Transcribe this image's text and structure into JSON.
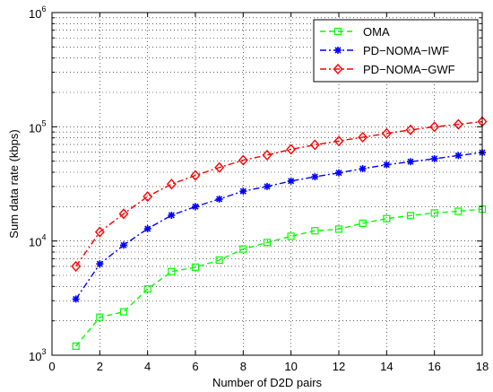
{
  "chart_data": {
    "type": "line",
    "xlabel": "Number of D2D pairs",
    "ylabel": "Sum data rate (kbps)",
    "xlim": [
      0,
      18
    ],
    "ylim": [
      1000,
      1000000
    ],
    "yscale": "log",
    "xticks": [
      0,
      2,
      4,
      6,
      8,
      10,
      12,
      14,
      16,
      18
    ],
    "xtick_labels": [
      "0",
      "2",
      "4",
      "6",
      "8",
      "10",
      "12",
      "14",
      "16",
      "18"
    ],
    "yticks": [
      1000,
      10000,
      100000,
      1000000
    ],
    "ytick_labels": [
      {
        "base": "10",
        "exp": "3"
      },
      {
        "base": "10",
        "exp": "4"
      },
      {
        "base": "10",
        "exp": "5"
      },
      {
        "base": "10",
        "exp": "6"
      }
    ],
    "grid": true,
    "legend_position": "top-right",
    "x": [
      1,
      2,
      3,
      4,
      5,
      6,
      7,
      8,
      9,
      10,
      11,
      12,
      13,
      14,
      15,
      16,
      17,
      18
    ],
    "series": [
      {
        "name": "OMA",
        "color": "#00ff00",
        "marker": "square",
        "dash": "dashed",
        "values": [
          1200,
          2150,
          2400,
          3800,
          5400,
          5900,
          6800,
          8500,
          9700,
          11000,
          12300,
          12700,
          14300,
          15700,
          16700,
          17600,
          18200,
          19000
        ]
      },
      {
        "name": "PD−NOMA−IWF",
        "color": "#0000ff",
        "marker": "star",
        "dash": "dashdot",
        "values": [
          3100,
          6300,
          9200,
          12800,
          16800,
          20000,
          23300,
          27300,
          30000,
          33500,
          36500,
          39500,
          43000,
          46500,
          49500,
          52500,
          56000,
          59500
        ]
      },
      {
        "name": "PD−NOMA−GWF",
        "color": "#ff0000",
        "marker": "diamond",
        "dash": "dashdot",
        "values": [
          6000,
          12000,
          17300,
          24500,
          31500,
          37500,
          44000,
          51000,
          56500,
          63500,
          69500,
          75000,
          81000,
          87500,
          94000,
          100000,
          105000,
          111000
        ]
      }
    ]
  }
}
